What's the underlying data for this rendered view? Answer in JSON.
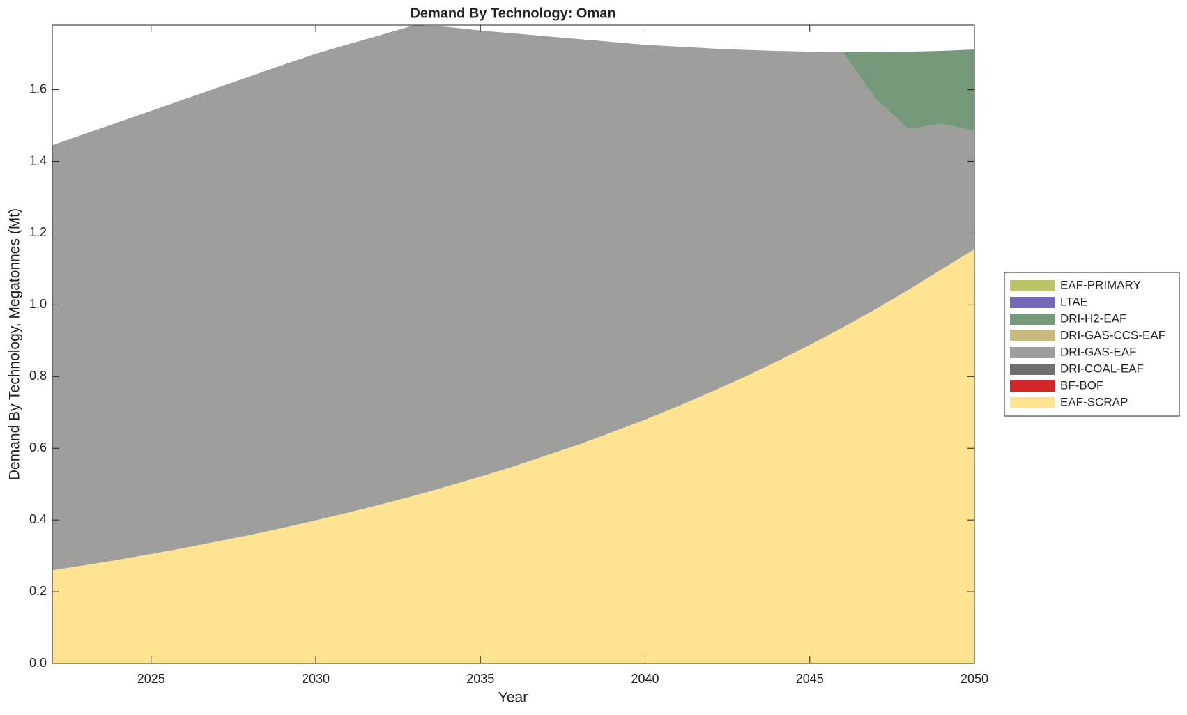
{
  "chart_data": {
    "type": "stacked_area",
    "title": "Demand By Technology: Oman",
    "xlabel": "Year",
    "ylabel": "Demand By Technology, Megatonnes (Mt)",
    "x": [
      2022,
      2023,
      2024,
      2025,
      2026,
      2027,
      2028,
      2029,
      2030,
      2031,
      2032,
      2033,
      2034,
      2035,
      2036,
      2037,
      2038,
      2039,
      2040,
      2041,
      2042,
      2043,
      2044,
      2045,
      2046,
      2047,
      2048,
      2049,
      2050
    ],
    "xlim": [
      2022,
      2050
    ],
    "xticks": [
      2025,
      2030,
      2035,
      2040,
      2045,
      2050
    ],
    "ylim": [
      0,
      1.78
    ],
    "yticks": [
      {
        "value": 0,
        "label": "0.0"
      },
      0.2,
      0.4,
      0.6,
      0.8,
      {
        "value": 1,
        "label": "1.0"
      },
      1.2,
      1.4,
      1.6
    ],
    "legend": "right",
    "series": [
      {
        "name": "EAF-SCRAP",
        "color": "#fee391",
        "values": [
          0.26,
          0.274,
          0.289,
          0.305,
          0.322,
          0.34,
          0.358,
          0.378,
          0.399,
          0.421,
          0.444,
          0.468,
          0.494,
          0.521,
          0.549,
          0.58,
          0.611,
          0.645,
          0.68,
          0.717,
          0.757,
          0.798,
          0.842,
          0.888,
          0.937,
          0.988,
          1.042,
          1.099,
          1.155
        ]
      },
      {
        "name": "BF-BOF",
        "color": "#d62728",
        "values": [
          0,
          0,
          0,
          0,
          0,
          0,
          0,
          0,
          0,
          0,
          0,
          0,
          0,
          0,
          0,
          0,
          0,
          0,
          0,
          0,
          0,
          0,
          0,
          0,
          0,
          0,
          0,
          0,
          0
        ]
      },
      {
        "name": "DRI-COAL-EAF",
        "color": "#6e6e6e",
        "values": [
          0,
          0,
          0,
          0,
          0,
          0,
          0,
          0,
          0,
          0,
          0,
          0,
          0,
          0,
          0,
          0,
          0,
          0,
          0,
          0,
          0,
          0,
          0,
          0,
          0,
          0,
          0,
          0,
          0
        ]
      },
      {
        "name": "DRI-GAS-EAF",
        "color": "#9e9e9c",
        "values": [
          1.185,
          1.203,
          1.22,
          1.236,
          1.251,
          1.265,
          1.279,
          1.291,
          1.301,
          1.306,
          1.309,
          1.312,
          1.281,
          1.244,
          1.208,
          1.169,
          1.13,
          1.088,
          1.045,
          1.003,
          0.958,
          0.913,
          0.866,
          0.818,
          0.768,
          0.587,
          0.448,
          0.406,
          0.33
        ]
      },
      {
        "name": "DRI-GAS-CCS-EAF",
        "color": "#c4bb7c",
        "values": [
          0,
          0,
          0,
          0,
          0,
          0,
          0,
          0,
          0,
          0,
          0,
          0,
          0,
          0,
          0,
          0,
          0,
          0,
          0,
          0,
          0,
          0,
          0,
          0,
          0,
          0,
          0,
          0,
          0
        ]
      },
      {
        "name": "DRI-H2-EAF",
        "color": "#76987b",
        "values": [
          0,
          0,
          0,
          0,
          0,
          0,
          0,
          0,
          0,
          0,
          0,
          0,
          0,
          0,
          0,
          0,
          0,
          0,
          0,
          0,
          0,
          0,
          0,
          0,
          0,
          0.13,
          0.216,
          0.203,
          0.227
        ]
      },
      {
        "name": "LTAE",
        "color": "#7367b8",
        "values": [
          0,
          0,
          0,
          0,
          0,
          0,
          0,
          0,
          0,
          0,
          0,
          0,
          0,
          0,
          0,
          0,
          0,
          0,
          0,
          0,
          0,
          0,
          0,
          0,
          0,
          0,
          0,
          0,
          0
        ]
      },
      {
        "name": "EAF-PRIMARY",
        "color": "#bcc46a",
        "values": [
          0,
          0,
          0,
          0,
          0,
          0,
          0,
          0,
          0,
          0,
          0,
          0,
          0,
          0,
          0,
          0,
          0,
          0,
          0,
          0,
          0,
          0,
          0,
          0,
          0,
          0,
          0,
          0,
          0
        ]
      }
    ]
  }
}
